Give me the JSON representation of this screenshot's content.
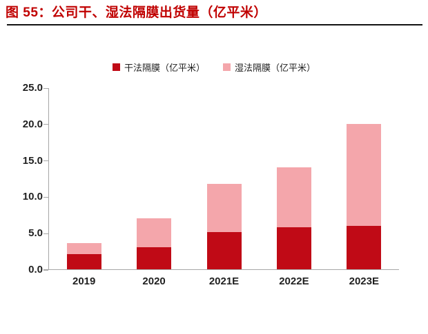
{
  "page": {
    "title": "图 55：公司干、湿法隔膜出货量（亿平米）"
  },
  "colors": {
    "title": "#c00000",
    "divider": "#111111",
    "axis": "#a6a6a6",
    "dry_red": "#c00a16",
    "wet_pink": "#f4a6ab"
  },
  "chart_data": {
    "type": "bar",
    "stacked": true,
    "title": "图 55：公司干、湿法隔膜出货量（亿平米）",
    "categories": [
      "2019",
      "2020",
      "2021E",
      "2022E",
      "2023E"
    ],
    "series": [
      {
        "name": "干法隔膜（亿平米）",
        "color": "#c00a16",
        "values": [
          2.1,
          3.0,
          5.1,
          5.8,
          6.0
        ]
      },
      {
        "name": "湿法隔膜（亿平米）",
        "color": "#f4a6ab",
        "values": [
          1.5,
          4.0,
          6.6,
          8.2,
          14.0
        ]
      }
    ],
    "totals": [
      3.6,
      7.0,
      11.7,
      14.0,
      20.0
    ],
    "xlabel": "",
    "ylabel": "",
    "ylim": [
      0,
      25
    ],
    "ytick_step": 5,
    "ytick_labels": [
      "0.0",
      "5.0",
      "10.0",
      "15.0",
      "20.0",
      "25.0"
    ],
    "grid": false,
    "legend_position": "top-center"
  }
}
